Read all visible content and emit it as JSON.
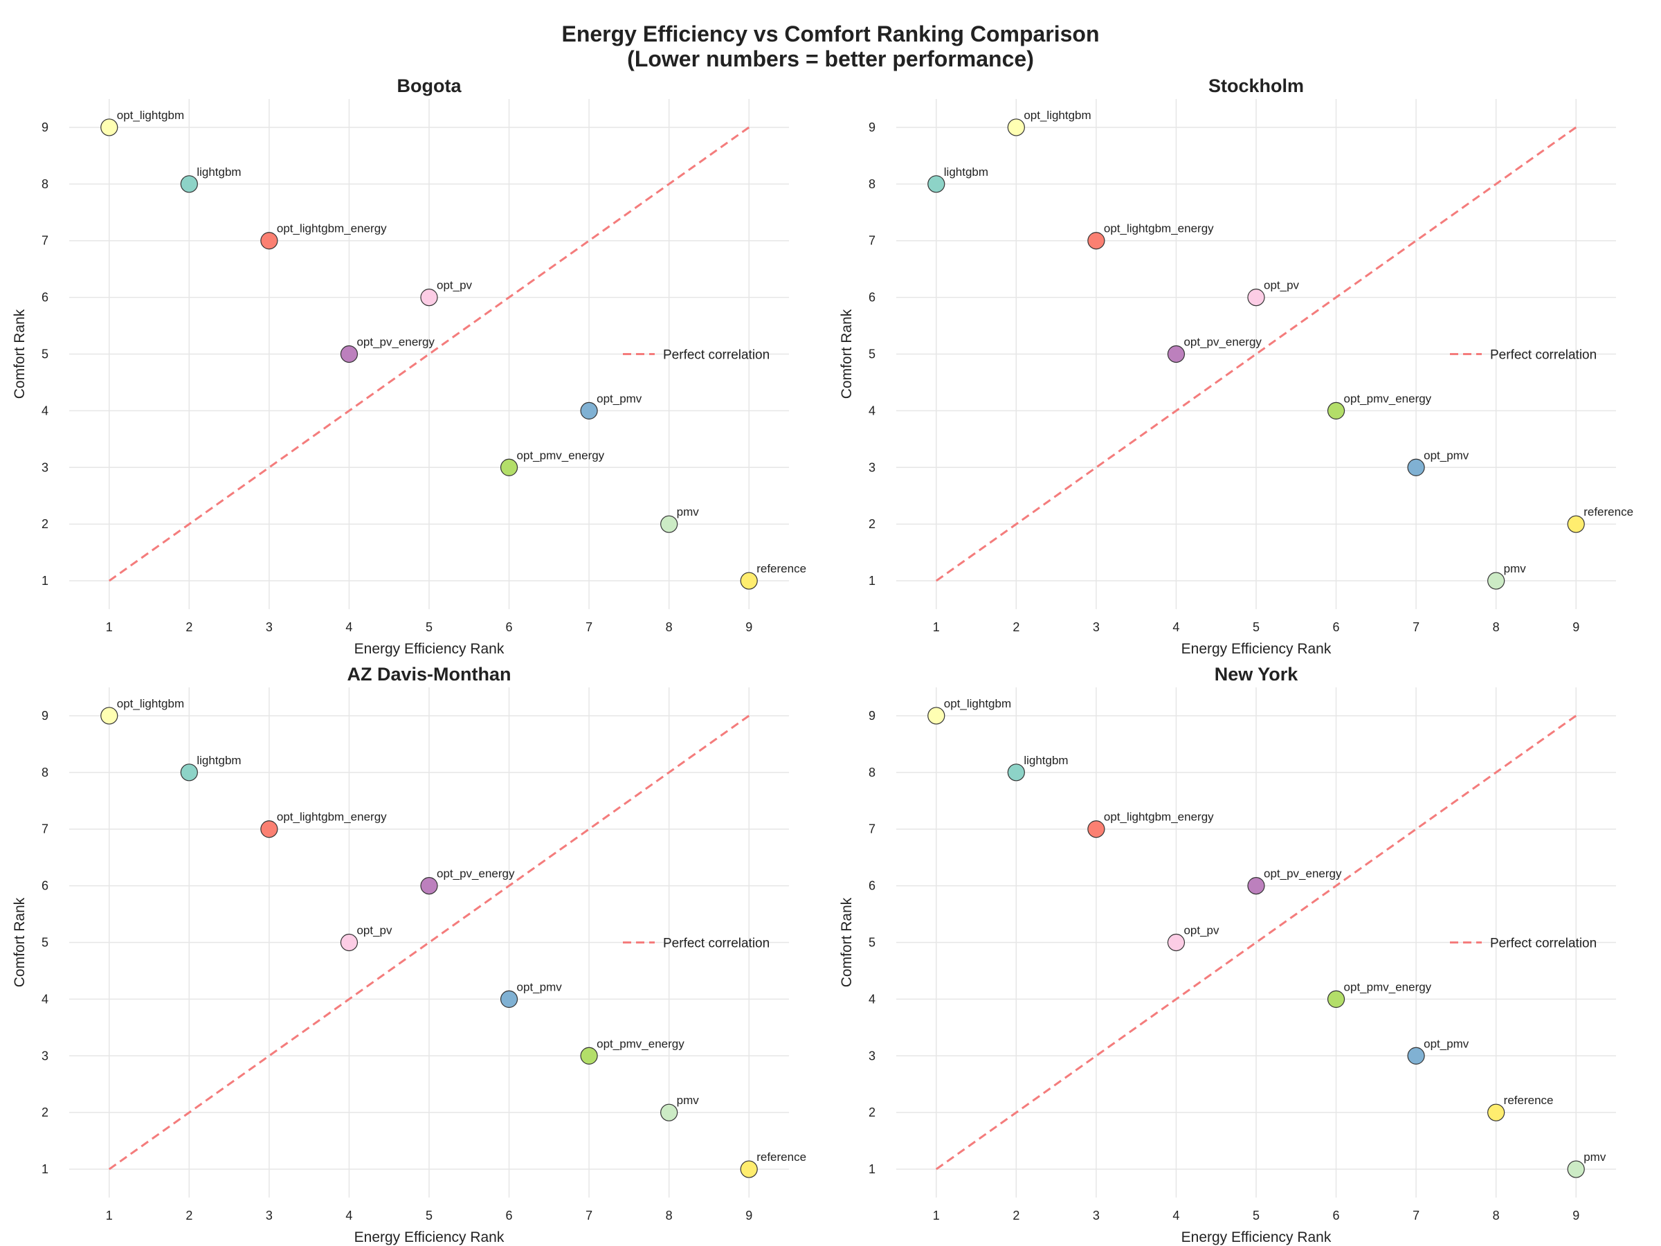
{
  "figure": {
    "title_line1": "Energy Efficiency vs Comfort Ranking Comparison",
    "title_line2": "(Lower numbers = better performance)"
  },
  "colors": {
    "opt_lightgbm": "#ffffb3",
    "lightgbm": "#8dd3c7",
    "opt_lightgbm_energy": "#fb8072",
    "opt_pv": "#fccde5",
    "opt_pv_energy": "#bc80bd",
    "opt_pmv": "#80b1d3",
    "opt_pmv_energy": "#b3de69",
    "pmv": "#ccebc5",
    "reference": "#ffed6f",
    "correlation_line": "#f47c7c"
  },
  "chart_data": [
    {
      "type": "scatter",
      "title": "Bogota",
      "xlabel": "Energy Efficiency Rank",
      "ylabel": "Comfort Rank",
      "xlim": [
        0.5,
        9.5
      ],
      "ylim": [
        0.5,
        9.5
      ],
      "xticks": [
        1,
        2,
        3,
        4,
        5,
        6,
        7,
        8,
        9
      ],
      "yticks": [
        1,
        2,
        3,
        4,
        5,
        6,
        7,
        8,
        9
      ],
      "grid": true,
      "legend": {
        "label": "Perfect correlation",
        "placement": "center-right"
      },
      "points": [
        {
          "label": "opt_lightgbm",
          "x": 1,
          "y": 9
        },
        {
          "label": "lightgbm",
          "x": 2,
          "y": 8
        },
        {
          "label": "opt_lightgbm_energy",
          "x": 3,
          "y": 7
        },
        {
          "label": "opt_pv",
          "x": 5,
          "y": 6
        },
        {
          "label": "opt_pv_energy",
          "x": 4,
          "y": 5
        },
        {
          "label": "opt_pmv",
          "x": 7,
          "y": 4
        },
        {
          "label": "opt_pmv_energy",
          "x": 6,
          "y": 3
        },
        {
          "label": "pmv",
          "x": 8,
          "y": 2
        },
        {
          "label": "reference",
          "x": 9,
          "y": 1
        }
      ]
    },
    {
      "type": "scatter",
      "title": "Stockholm",
      "xlabel": "Energy Efficiency Rank",
      "ylabel": "Comfort Rank",
      "xlim": [
        0.5,
        9.5
      ],
      "ylim": [
        0.5,
        9.5
      ],
      "xticks": [
        1,
        2,
        3,
        4,
        5,
        6,
        7,
        8,
        9
      ],
      "yticks": [
        1,
        2,
        3,
        4,
        5,
        6,
        7,
        8,
        9
      ],
      "grid": true,
      "legend": {
        "label": "Perfect correlation",
        "placement": "center-right"
      },
      "points": [
        {
          "label": "opt_lightgbm",
          "x": 2,
          "y": 9
        },
        {
          "label": "lightgbm",
          "x": 1,
          "y": 8
        },
        {
          "label": "opt_lightgbm_energy",
          "x": 3,
          "y": 7
        },
        {
          "label": "opt_pv",
          "x": 5,
          "y": 6
        },
        {
          "label": "opt_pv_energy",
          "x": 4,
          "y": 5
        },
        {
          "label": "opt_pmv_energy",
          "x": 6,
          "y": 4
        },
        {
          "label": "opt_pmv",
          "x": 7,
          "y": 3
        },
        {
          "label": "reference",
          "x": 9,
          "y": 2
        },
        {
          "label": "pmv",
          "x": 8,
          "y": 1
        }
      ]
    },
    {
      "type": "scatter",
      "title": "AZ Davis-Monthan",
      "xlabel": "Energy Efficiency Rank",
      "ylabel": "Comfort Rank",
      "xlim": [
        0.5,
        9.5
      ],
      "ylim": [
        0.5,
        9.5
      ],
      "xticks": [
        1,
        2,
        3,
        4,
        5,
        6,
        7,
        8,
        9
      ],
      "yticks": [
        1,
        2,
        3,
        4,
        5,
        6,
        7,
        8,
        9
      ],
      "grid": true,
      "legend": {
        "label": "Perfect correlation",
        "placement": "center-right"
      },
      "points": [
        {
          "label": "opt_lightgbm",
          "x": 1,
          "y": 9
        },
        {
          "label": "lightgbm",
          "x": 2,
          "y": 8
        },
        {
          "label": "opt_lightgbm_energy",
          "x": 3,
          "y": 7
        },
        {
          "label": "opt_pv_energy",
          "x": 5,
          "y": 6
        },
        {
          "label": "opt_pv",
          "x": 4,
          "y": 5
        },
        {
          "label": "opt_pmv",
          "x": 6,
          "y": 4
        },
        {
          "label": "opt_pmv_energy",
          "x": 7,
          "y": 3
        },
        {
          "label": "pmv",
          "x": 8,
          "y": 2
        },
        {
          "label": "reference",
          "x": 9,
          "y": 1
        }
      ]
    },
    {
      "type": "scatter",
      "title": "New York",
      "xlabel": "Energy Efficiency Rank",
      "ylabel": "Comfort Rank",
      "xlim": [
        0.5,
        9.5
      ],
      "ylim": [
        0.5,
        9.5
      ],
      "xticks": [
        1,
        2,
        3,
        4,
        5,
        6,
        7,
        8,
        9
      ],
      "yticks": [
        1,
        2,
        3,
        4,
        5,
        6,
        7,
        8,
        9
      ],
      "grid": true,
      "legend": {
        "label": "Perfect correlation",
        "placement": "center-right"
      },
      "points": [
        {
          "label": "opt_lightgbm",
          "x": 1,
          "y": 9
        },
        {
          "label": "lightgbm",
          "x": 2,
          "y": 8
        },
        {
          "label": "opt_lightgbm_energy",
          "x": 3,
          "y": 7
        },
        {
          "label": "opt_pv_energy",
          "x": 5,
          "y": 6
        },
        {
          "label": "opt_pv",
          "x": 4,
          "y": 5
        },
        {
          "label": "opt_pmv_energy",
          "x": 6,
          "y": 4
        },
        {
          "label": "opt_pmv",
          "x": 7,
          "y": 3
        },
        {
          "label": "reference",
          "x": 8,
          "y": 2
        },
        {
          "label": "pmv",
          "x": 9,
          "y": 1
        }
      ]
    }
  ]
}
